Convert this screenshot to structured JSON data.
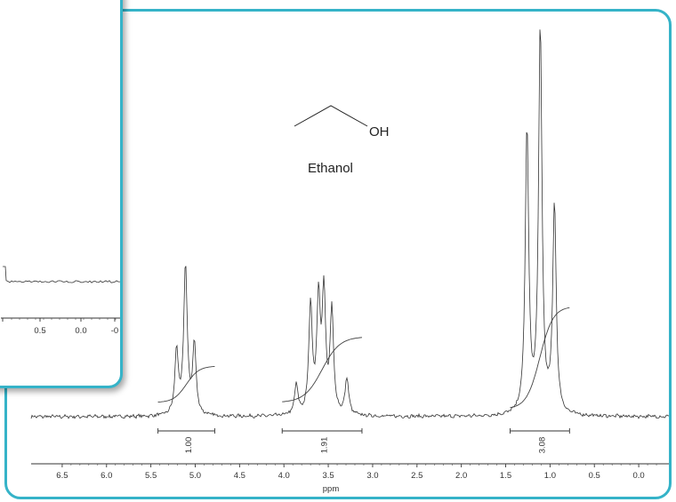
{
  "chart_data": {
    "type": "line",
    "xlabel": "ppm",
    "x_ticks": [
      "6.5",
      "6.0",
      "5.5",
      "5.0",
      "4.5",
      "4.0",
      "3.5",
      "3.0",
      "2.5",
      "2.0",
      "1.5",
      "1.0",
      "0.5",
      "0.0"
    ],
    "xlim": [
      6.85,
      -0.35
    ],
    "molecule": {
      "name": "Ethanol",
      "group": "OH"
    },
    "integrals": [
      {
        "value": "1.00",
        "from": 5.42,
        "to": 4.78
      },
      {
        "value": "1.91",
        "from": 4.02,
        "to": 3.12
      },
      {
        "value": "3.08",
        "from": 1.45,
        "to": 0.78
      }
    ],
    "peaks": [
      {
        "ppm": 5.21,
        "height": 0.166
      },
      {
        "ppm": 5.11,
        "height": 0.389
      },
      {
        "ppm": 5.01,
        "height": 0.18
      },
      {
        "ppm": 3.86,
        "height": 0.078
      },
      {
        "ppm": 3.7,
        "height": 0.282
      },
      {
        "ppm": 3.61,
        "height": 0.286
      },
      {
        "ppm": 3.55,
        "height": 0.307
      },
      {
        "ppm": 3.46,
        "height": 0.265
      },
      {
        "ppm": 3.29,
        "height": 0.095
      },
      {
        "ppm": 1.26,
        "height": 0.74
      },
      {
        "ppm": 1.11,
        "height": 1.0
      },
      {
        "ppm": 0.95,
        "height": 0.541
      }
    ],
    "inset": {
      "x_ticks": [
        "0.5",
        "0.0",
        "-0"
      ]
    }
  }
}
